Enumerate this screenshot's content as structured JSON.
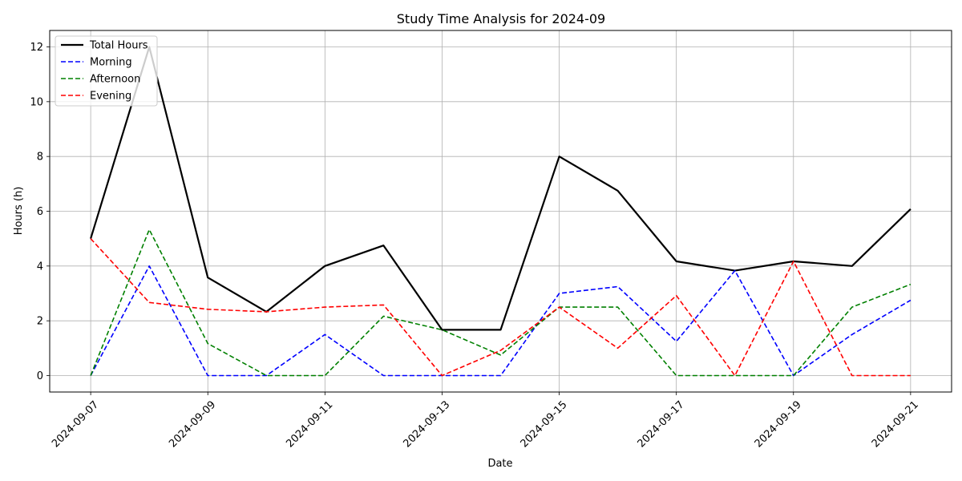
{
  "chart_data": {
    "type": "line",
    "title": "Study Time Analysis for 2024-09",
    "xlabel": "Date",
    "ylabel": "Hours (h)",
    "x": [
      "2024-09-07",
      "2024-09-08",
      "2024-09-09",
      "2024-09-10",
      "2024-09-11",
      "2024-09-12",
      "2024-09-13",
      "2024-09-14",
      "2024-09-15",
      "2024-09-16",
      "2024-09-17",
      "2024-09-18",
      "2024-09-19",
      "2024-09-20",
      "2024-09-21"
    ],
    "x_tick_labels": [
      "2024-09-07",
      "2024-09-09",
      "2024-09-11",
      "2024-09-13",
      "2024-09-15",
      "2024-09-17",
      "2024-09-19",
      "2024-09-21"
    ],
    "y_ticks": [
      0,
      2,
      4,
      6,
      8,
      10,
      12
    ],
    "xlim": [
      "2024-09-06.3",
      "2024-09-21.7"
    ],
    "ylim": [
      -0.6,
      12.6
    ],
    "grid": true,
    "legend_position": "top-left",
    "series": [
      {
        "name": "Total Hours",
        "color": "#000000",
        "style": "solid",
        "values": [
          5.0,
          12.0,
          3.58,
          2.33,
          4.0,
          4.75,
          1.67,
          1.67,
          8.0,
          6.75,
          4.17,
          3.83,
          4.17,
          4.0,
          6.08
        ]
      },
      {
        "name": "Morning",
        "color": "#0000ff",
        "style": "dashed",
        "values": [
          0.0,
          4.0,
          0.0,
          0.0,
          1.5,
          0.0,
          0.0,
          0.0,
          3.0,
          3.25,
          1.25,
          3.83,
          0.0,
          1.5,
          2.75
        ]
      },
      {
        "name": "Afternoon",
        "color": "#008000",
        "style": "dashed",
        "values": [
          0.0,
          5.33,
          1.17,
          0.0,
          0.0,
          2.17,
          1.67,
          0.75,
          2.5,
          2.5,
          0.0,
          0.0,
          0.0,
          2.5,
          3.33
        ]
      },
      {
        "name": "Evening",
        "color": "#ff0000",
        "style": "dashed",
        "values": [
          5.0,
          2.67,
          2.42,
          2.33,
          2.5,
          2.58,
          0.0,
          0.92,
          2.5,
          1.0,
          2.92,
          0.0,
          4.17,
          0.0,
          0.0
        ]
      }
    ]
  }
}
